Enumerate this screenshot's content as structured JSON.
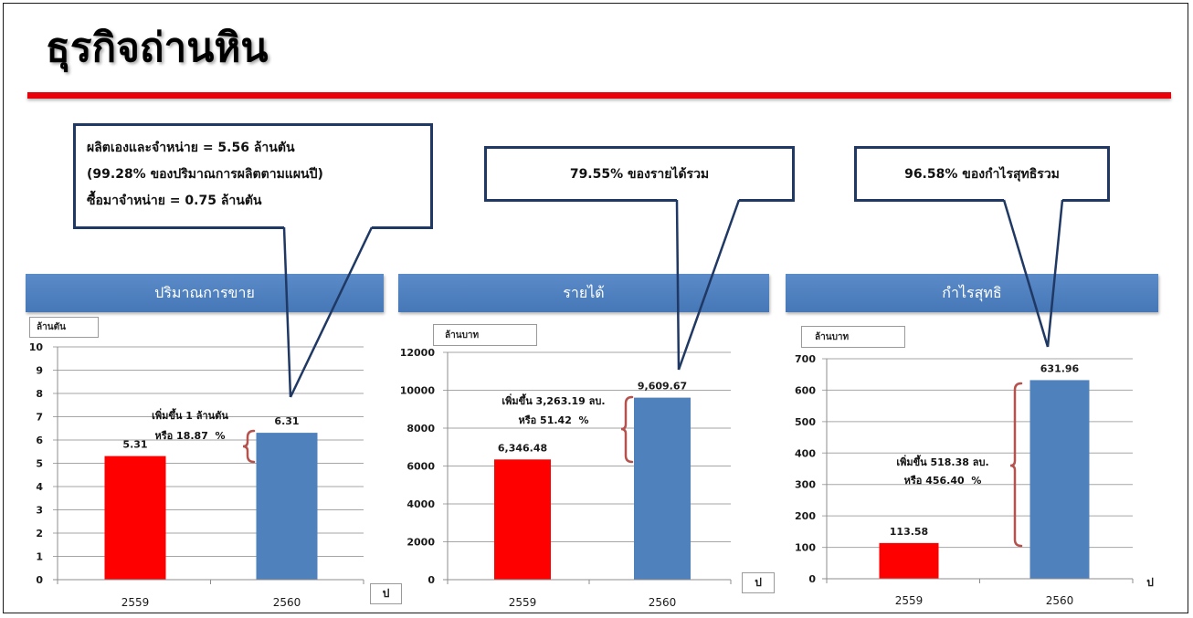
{
  "slide": {
    "title": "ธุรกิจถ่านหิน"
  },
  "colors": {
    "title_underline": "#e8000b",
    "header_blue": "#4f81bd",
    "callout_border": "#1f3864",
    "bracket": "#b5524e"
  },
  "callouts": [
    {
      "lines": [
        "ผลิตเองและจำหน่าย = 5.56 ล้านตัน",
        "(99.28% ของปริมาณการผลิตตามแผนปี)",
        "ซื้อมาจำหน่าย = 0.75 ล้านตัน"
      ]
    },
    {
      "lines": [
        "79.55% ของรายได้รวม"
      ]
    },
    {
      "lines": [
        "96.58% ของกำไรสุทธิรวม"
      ]
    }
  ],
  "chart_data": [
    {
      "type": "bar",
      "title": "ปริมาณการขาย",
      "ylabel": "ล้านตัน",
      "xlabel": "ป",
      "categories": [
        "2559",
        "2560"
      ],
      "values": [
        5.31,
        6.31
      ],
      "data_labels": [
        "5.31",
        "6.31"
      ],
      "bar_colors": [
        "#ff0000",
        "#4f81bd"
      ],
      "ylim": [
        0,
        10
      ],
      "yticks": [
        0,
        1,
        2,
        3,
        4,
        5,
        6,
        7,
        8,
        9,
        10
      ],
      "grid": true,
      "annotation": [
        "เพิ่มขึ้น 1 ล้านตัน",
        "หรือ 18.87  %"
      ]
    },
    {
      "type": "bar",
      "title": "รายได้",
      "ylabel": "ล้านบาท",
      "xlabel": "ป",
      "categories": [
        "2559",
        "2560"
      ],
      "values": [
        6346.48,
        9609.67
      ],
      "data_labels": [
        "6,346.48",
        "9,609.67"
      ],
      "bar_colors": [
        "#ff0000",
        "#4f81bd"
      ],
      "ylim": [
        0,
        12000
      ],
      "yticks": [
        0,
        2000,
        4000,
        6000,
        8000,
        10000,
        12000
      ],
      "grid": true,
      "annotation": [
        "เพิ่มขึ้น 3,263.19 ลบ.",
        "หรือ 51.42  %"
      ]
    },
    {
      "type": "bar",
      "title": "กำไรสุทธิ",
      "ylabel": "ล้านบาท",
      "xlabel": "ป",
      "categories": [
        "2559",
        "2560"
      ],
      "values": [
        113.58,
        631.96
      ],
      "data_labels": [
        "113.58",
        "631.96"
      ],
      "bar_colors": [
        "#ff0000",
        "#4f81bd"
      ],
      "ylim": [
        0,
        700
      ],
      "yticks": [
        0,
        100,
        200,
        300,
        400,
        500,
        600,
        700
      ],
      "grid": true,
      "annotation": [
        "เพิ่มขึ้น 518.38 ลบ.",
        "หรือ 456.40  %"
      ]
    }
  ]
}
